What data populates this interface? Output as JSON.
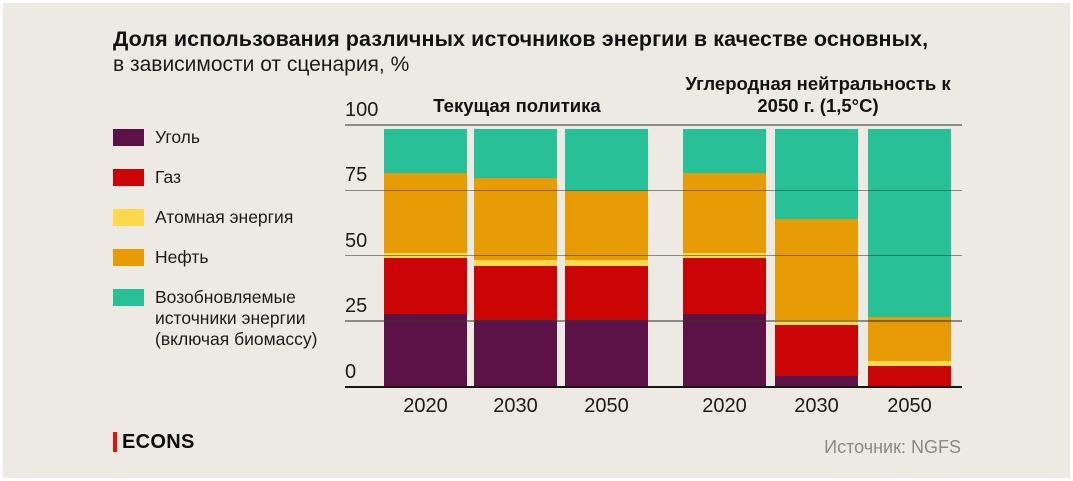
{
  "title": {
    "line1": "Доля использования различных источников энергии в качестве основных,",
    "line2": "в зависимости от сценария, %"
  },
  "legend": [
    {
      "label": "Уголь",
      "color": "#5c1246"
    },
    {
      "label": "Газ",
      "color": "#cb0505"
    },
    {
      "label": "Атомная энергия",
      "color": "#fcd84a"
    },
    {
      "label": "Нефть",
      "color": "#e79b05"
    },
    {
      "label": "Возобновляемые источники энергии (включая биомассу)",
      "color": "#28c096"
    }
  ],
  "chart_data": {
    "type": "bar",
    "stacked": true,
    "unit": "%",
    "ylim": [
      0,
      100
    ],
    "y_ticks": [
      0,
      25,
      50,
      75,
      100
    ],
    "grid": true,
    "groups": [
      {
        "title": "Текущая политика",
        "categories": [
          "2020",
          "2030",
          "2050"
        ]
      },
      {
        "title": "Углеродная нейтральность к 2050 г. (1,5°C)",
        "categories": [
          "2020",
          "2030",
          "2050"
        ]
      }
    ],
    "series": [
      {
        "name": "Уголь",
        "color": "#5c1246",
        "values": [
          28,
          26,
          26,
          28,
          4,
          0
        ]
      },
      {
        "name": "Газ",
        "color": "#cb0505",
        "values": [
          22,
          21,
          21,
          22,
          20,
          8
        ]
      },
      {
        "name": "Атомная энергия",
        "color": "#fcd84a",
        "values": [
          2,
          2,
          2,
          2,
          2,
          2
        ]
      },
      {
        "name": "Нефть",
        "color": "#e79b05",
        "values": [
          31,
          32,
          27,
          31,
          39,
          17
        ]
      },
      {
        "name": "Возобновляемые источники энергии (включая биомассу)",
        "color": "#28c096",
        "values": [
          17,
          19,
          24,
          17,
          35,
          73
        ]
      }
    ]
  },
  "footer": {
    "brand": "ECONS",
    "source": "Источник: NGFS"
  }
}
